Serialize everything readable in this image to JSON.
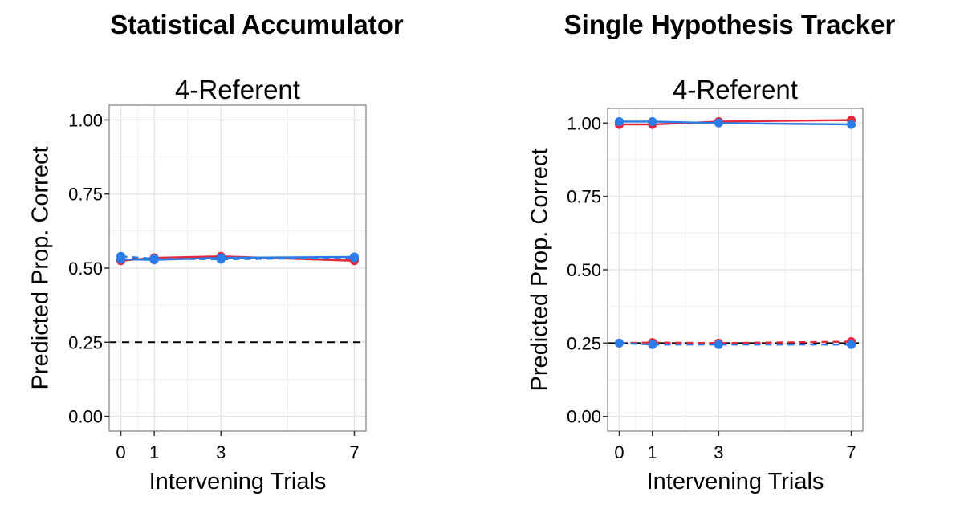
{
  "columns": {
    "left_title": "Statistical Accumulator",
    "right_title": "Single Hypothesis Tracker"
  },
  "colors": {
    "red": "#e3283c",
    "blue": "#2a7de8",
    "chance_line": "#000000",
    "panel_border": "#7f7f7f",
    "grid": "#ebebeb"
  },
  "chart_data": [
    {
      "type": "line",
      "title": "4-Referent",
      "xlabel": "Intervening Trials",
      "ylabel": "Predicted Prop. Correct",
      "x": [
        0,
        1,
        3,
        7
      ],
      "xticks": [
        "0",
        "1",
        "3",
        "7"
      ],
      "yticks": [
        "0.00",
        "0.25",
        "0.50",
        "0.75",
        "1.00"
      ],
      "xlim": [
        -0.35,
        7.35
      ],
      "ylim": [
        -0.05,
        1.05
      ],
      "chance_level": 0.25,
      "grid": true,
      "legend": "none",
      "series": [
        {
          "color": "red",
          "dash": false,
          "values": [
            0.525,
            0.535,
            0.54,
            0.525
          ]
        },
        {
          "color": "red",
          "dash": true,
          "values": [
            0.53,
            0.532,
            0.537,
            0.53
          ]
        },
        {
          "color": "blue",
          "dash": false,
          "values": [
            0.53,
            0.528,
            0.535,
            0.538
          ]
        },
        {
          "color": "blue",
          "dash": true,
          "values": [
            0.54,
            0.532,
            0.53,
            0.535
          ]
        }
      ]
    },
    {
      "type": "line",
      "title": "4-Referent",
      "xlabel": "Intervening Trials",
      "ylabel": "Predicted Prop. Correct",
      "x": [
        0,
        1,
        3,
        7
      ],
      "xticks": [
        "0",
        "1",
        "3",
        "7"
      ],
      "yticks": [
        "0.00",
        "0.25",
        "0.50",
        "0.75",
        "1.00"
      ],
      "xlim": [
        -0.35,
        7.35
      ],
      "ylim": [
        -0.05,
        1.05
      ],
      "chance_level": 0.25,
      "grid": true,
      "legend": "none",
      "series": [
        {
          "color": "red",
          "dash": false,
          "values": [
            0.995,
            0.995,
            1.005,
            1.01
          ]
        },
        {
          "color": "blue",
          "dash": false,
          "values": [
            1.005,
            1.005,
            1.0,
            0.995
          ]
        },
        {
          "color": "red",
          "dash": true,
          "values": [
            0.25,
            0.252,
            0.25,
            0.255
          ]
        },
        {
          "color": "blue",
          "dash": true,
          "values": [
            0.25,
            0.245,
            0.245,
            0.245
          ]
        }
      ]
    }
  ]
}
